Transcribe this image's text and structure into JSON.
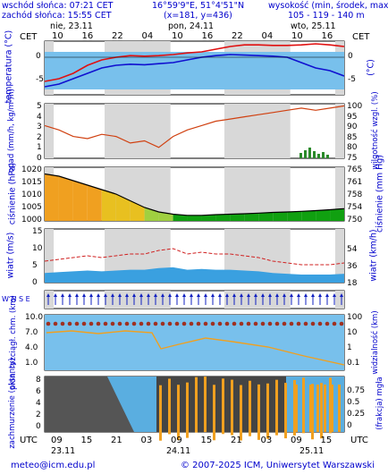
{
  "header": {
    "sunrise": "wschód słońca: 07:21 CET",
    "sunset": "zachód słońca: 15:55 CET",
    "coords": "16°59'9\"E, 51°4'51\"N",
    "grid": "(x=181, y=436)",
    "elev_label": "wysokość (min, środek, max)",
    "elev_values": "105 - 119 - 140 m"
  },
  "days": {
    "d1": "nie, 23.11",
    "d2": "pon, 24.11",
    "d3": "wto, 25.11"
  },
  "top_axis": {
    "tz_left": "CET",
    "tz_right": "CET",
    "hours": [
      "10",
      "16",
      "22",
      "04",
      "10",
      "16",
      "22",
      "04",
      "10",
      "16"
    ]
  },
  "bottom_axis": {
    "tz_left": "UTC",
    "tz_right": "UTC",
    "hours": [
      "09",
      "15",
      "21",
      "03",
      "09",
      "15",
      "21",
      "03",
      "09",
      "15"
    ],
    "dates": [
      "23.11",
      "24.11",
      "25.11"
    ]
  },
  "panels": {
    "temp": {
      "label_left": "temperatura (°C)",
      "label_right": "(°C)",
      "ticks": [
        "0",
        "-5"
      ]
    },
    "precip": {
      "label_left": "opad (mm/h, kg/m²/h)",
      "label_right": "wilgotność wzgl. (%)",
      "ticks_left": [
        "5",
        "4",
        "3",
        "2",
        "1",
        "0"
      ],
      "ticks_right": [
        "100",
        "95",
        "90",
        "85",
        "80",
        "75"
      ]
    },
    "pressure": {
      "label_left": "ciśnienie (hPa)",
      "label_right": "ciśnienie (mm Hg)",
      "ticks_left": [
        "1020",
        "1015",
        "1010",
        "1005",
        "1000"
      ],
      "ticks_right": [
        "765",
        "761",
        "758",
        "754",
        "750"
      ]
    },
    "wind": {
      "label_left": "wiatr (m/s)",
      "label_right": "wiatr (km/h)",
      "ticks_left": [
        "15",
        "10",
        "5",
        "0"
      ],
      "ticks_right": [
        "54",
        "36",
        "18",
        ""
      ]
    },
    "winddir": {
      "label": "W N S E"
    },
    "visibility": {
      "label_left": "pion. rozciągł. chm. (km)",
      "label_right": "widzialność (km)",
      "ticks_left": [
        "10.0",
        "7.0",
        "4.0",
        "1.0"
      ],
      "ticks_right": [
        "100",
        "10",
        "1",
        "0.1"
      ]
    },
    "clouds": {
      "label_left": "zachmurzenie (oktanty)",
      "label_right": "(frakcja) mgła",
      "ticks_left": [
        "8",
        "6",
        "4",
        "2",
        "0"
      ],
      "ticks_right": [
        "0.75",
        "0.5",
        "0.25",
        "0"
      ]
    }
  },
  "footer": {
    "email": "meteo@icm.edu.pl",
    "copyright": "© 2007-2025 ICM, Uniwersytet Warszawski"
  },
  "colors": {
    "label": "#0000cc",
    "sky": "#5aaee0",
    "temp_red": "#e01010",
    "temp_blue": "#1010d0",
    "humidity": "#d04010",
    "pressure_high": "#f0a020",
    "pressure_low": "#10a010"
  },
  "chart_data": [
    {
      "type": "line",
      "title": "temperatura",
      "unit": "°C",
      "ylim": [
        -7,
        3
      ],
      "series": [
        {
          "values": [
            -4.5,
            -4,
            -3,
            -1.5,
            -0.5,
            0,
            0.3,
            0.2,
            0.3,
            0.5,
            0.8,
            1,
            1.5,
            2,
            2.3,
            2.3,
            2.2,
            2.2,
            2.3,
            2.5,
            2.3,
            2
          ]
        },
        {
          "values": [
            -5.5,
            -5,
            -4,
            -3,
            -2,
            -1.5,
            -1.3,
            -1.4,
            -1.2,
            -1,
            -0.5,
            0,
            0.3,
            0.5,
            0.4,
            0.3,
            0.2,
            0,
            -1,
            -2,
            -2.5,
            -3.5
          ]
        }
      ]
    },
    {
      "type": "line",
      "title": "wilgotność wzgl.",
      "unit": "%",
      "ylim": [
        75,
        100
      ],
      "series": [
        {
          "values": [
            90,
            88,
            85,
            84,
            86,
            85,
            82,
            83,
            80,
            85,
            88,
            90,
            92,
            93,
            94,
            95,
            96,
            97,
            98,
            97,
            98,
            99
          ]
        }
      ]
    },
    {
      "type": "area",
      "title": "ciśnienie",
      "unit": "hPa",
      "ylim": [
        998,
        1022
      ],
      "series": [
        {
          "values": [
            1019,
            1018,
            1016,
            1014,
            1012,
            1010,
            1007,
            1004,
            1002,
            1001,
            1000.5,
            1000.5,
            1000.8,
            1001,
            1001.2,
            1001.5,
            1001.8,
            1002,
            1002.3,
            1002.6,
            1003,
            1003.5
          ]
        }
      ]
    },
    {
      "type": "line",
      "title": "wiatr",
      "unit": "m/s",
      "ylim": [
        0,
        15
      ],
      "series": [
        {
          "values": [
            6,
            6.5,
            7,
            7.5,
            7,
            7.5,
            8,
            8,
            9,
            9.5,
            8,
            8.5,
            8,
            8,
            7.5,
            7,
            6,
            5.5,
            5,
            5,
            5,
            5.5
          ]
        }
      ]
    }
  ]
}
